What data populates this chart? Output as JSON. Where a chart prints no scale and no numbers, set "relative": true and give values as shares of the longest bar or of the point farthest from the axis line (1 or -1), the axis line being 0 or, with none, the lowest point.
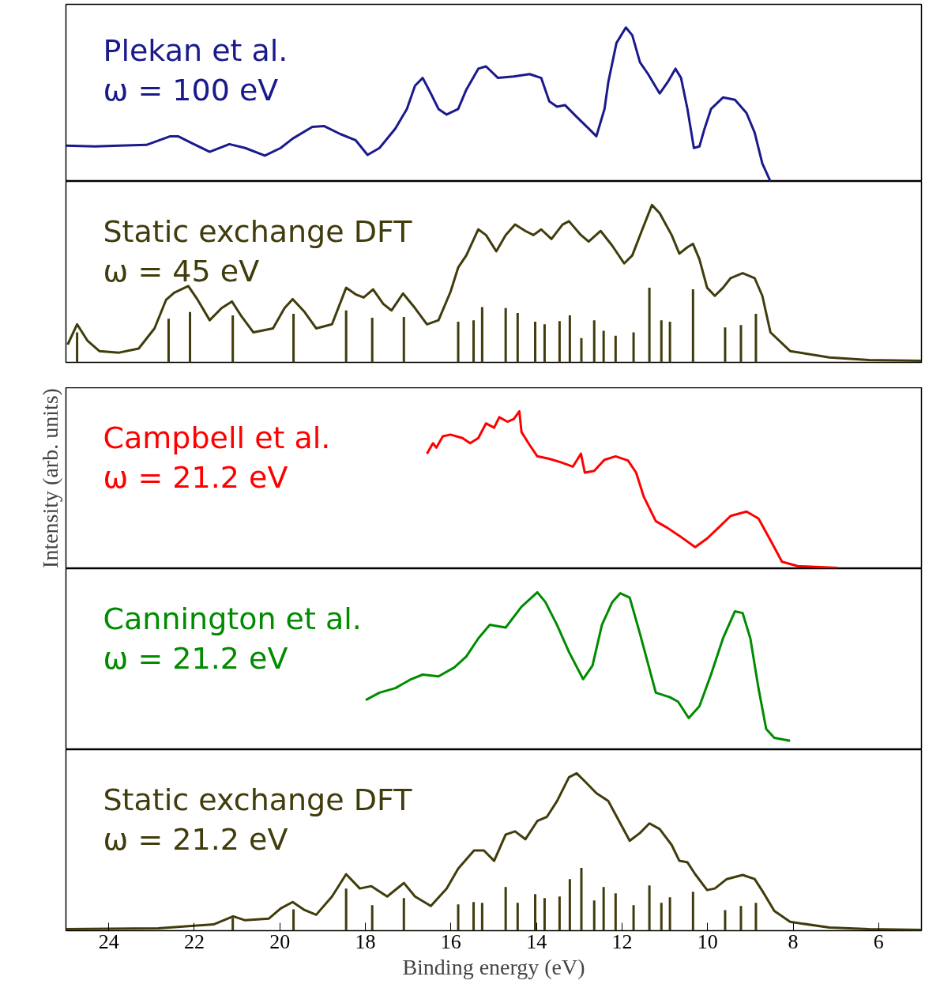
{
  "chart_data": [
    {
      "type": "line",
      "relative": true,
      "xlim": [
        25,
        5
      ],
      "tick_labels": false,
      "grid": false,
      "annotations": [
        "Plekan et al.",
        "ω = 100 eV"
      ],
      "series": [
        {
          "color": "#1a1a8c",
          "x": [
            25.0,
            24.32,
            23.76,
            23.12,
            22.56,
            22.38,
            22.01,
            21.64,
            21.18,
            20.81,
            20.35,
            19.98,
            19.7,
            19.24,
            18.96,
            18.59,
            18.23,
            17.95,
            17.67,
            17.3,
            17.03,
            16.84,
            16.66,
            16.47,
            16.29,
            16.1,
            15.83,
            15.64,
            15.36,
            15.18,
            14.9,
            14.53,
            14.16,
            13.89,
            13.7,
            13.52,
            13.33,
            13.06,
            12.78,
            12.6,
            12.41,
            12.32,
            12.13,
            11.91,
            11.76,
            11.58,
            11.39,
            11.12,
            10.93,
            10.75,
            10.62,
            10.47,
            10.32,
            10.19,
            10.07,
            9.92,
            9.64,
            9.36,
            9.09,
            8.9,
            8.72,
            8.53
          ],
          "values": [
            0.232,
            0.227,
            0.232,
            0.237,
            0.293,
            0.293,
            0.242,
            0.192,
            0.242,
            0.217,
            0.167,
            0.217,
            0.278,
            0.354,
            0.359,
            0.308,
            0.268,
            0.172,
            0.217,
            0.343,
            0.47,
            0.621,
            0.672,
            0.571,
            0.47,
            0.434,
            0.47,
            0.596,
            0.732,
            0.747,
            0.672,
            0.682,
            0.697,
            0.672,
            0.52,
            0.485,
            0.495,
            0.419,
            0.343,
            0.293,
            0.47,
            0.646,
            0.899,
            1.0,
            0.949,
            0.773,
            0.697,
            0.571,
            0.646,
            0.732,
            0.672,
            0.47,
            0.217,
            0.227,
            0.343,
            0.47,
            0.545,
            0.53,
            0.444,
            0.318,
            0.116,
            0
          ]
        }
      ]
    },
    {
      "type": "line",
      "relative": true,
      "xlim": [
        25,
        5
      ],
      "tick_labels": false,
      "grid": false,
      "annotations": [
        "Static exchange DFT",
        "ω = 45 eV"
      ],
      "series": [
        {
          "color": "#403c0c",
          "x": [
            24.96,
            24.74,
            24.5,
            24.22,
            23.76,
            23.3,
            22.93,
            22.66,
            22.47,
            22.14,
            21.92,
            21.64,
            21.36,
            21.12,
            20.9,
            20.62,
            20.16,
            19.89,
            19.7,
            19.42,
            19.15,
            18.78,
            18.45,
            18.23,
            18.04,
            17.82,
            17.58,
            17.39,
            17.12,
            16.84,
            16.56,
            16.29,
            16.01,
            15.83,
            15.64,
            15.36,
            15.18,
            14.94,
            14.72,
            14.5,
            14.26,
            14.07,
            13.89,
            13.65,
            13.39,
            13.24,
            12.96,
            12.78,
            12.5,
            12.23,
            11.95,
            11.76,
            11.54,
            11.3,
            11.12,
            10.84,
            10.66,
            10.47,
            10.34,
            10.19,
            10.01,
            9.83,
            9.64,
            9.46,
            9.18,
            8.9,
            8.72,
            8.53,
            8.07,
            7.15,
            6.23,
            5.0
          ],
          "values": [
            0.113,
            0.242,
            0.139,
            0.072,
            0.062,
            0.088,
            0.216,
            0.397,
            0.443,
            0.485,
            0.397,
            0.268,
            0.345,
            0.387,
            0.294,
            0.191,
            0.216,
            0.345,
            0.402,
            0.32,
            0.216,
            0.242,
            0.474,
            0.433,
            0.412,
            0.464,
            0.371,
            0.33,
            0.438,
            0.345,
            0.242,
            0.268,
            0.448,
            0.603,
            0.68,
            0.845,
            0.809,
            0.706,
            0.809,
            0.876,
            0.835,
            0.809,
            0.845,
            0.784,
            0.876,
            0.897,
            0.809,
            0.768,
            0.835,
            0.742,
            0.629,
            0.68,
            0.835,
            1.0,
            0.948,
            0.809,
            0.691,
            0.732,
            0.753,
            0.655,
            0.474,
            0.423,
            0.474,
            0.536,
            0.567,
            0.536,
            0.423,
            0.191,
            0.072,
            0.031,
            0.015,
            0.01
          ]
        },
        {
          "type": "bar",
          "color": "#403c0c",
          "x": [
            24.74,
            22.6,
            22.1,
            21.1,
            19.68,
            18.45,
            17.84,
            17.1,
            15.83,
            15.47,
            15.27,
            14.72,
            14.44,
            14.03,
            13.81,
            13.46,
            13.22,
            12.95,
            12.65,
            12.43,
            12.15,
            11.73,
            11.36,
            11.08,
            10.88,
            10.34,
            9.59,
            9.22,
            8.87
          ],
          "values": [
            0.191,
            0.278,
            0.32,
            0.299,
            0.309,
            0.33,
            0.284,
            0.289,
            0.258,
            0.268,
            0.351,
            0.345,
            0.314,
            0.258,
            0.242,
            0.263,
            0.299,
            0.155,
            0.268,
            0.201,
            0.17,
            0.191,
            0.474,
            0.268,
            0.258,
            0.464,
            0.222,
            0.237,
            0.309
          ]
        }
      ]
    },
    {
      "type": "line",
      "relative": true,
      "xlim": [
        25,
        5
      ],
      "tick_labels": false,
      "grid": false,
      "ylabel": "Intensity (arb. units)",
      "annotations": [
        "Campbell et al.",
        "ω = 21.2 eV"
      ],
      "series": [
        {
          "color": "#ff0000",
          "x": [
            16.56,
            16.42,
            16.34,
            16.19,
            16.01,
            15.73,
            15.55,
            15.36,
            15.18,
            14.99,
            14.87,
            14.68,
            14.53,
            14.4,
            14.35,
            14.16,
            13.98,
            13.7,
            13.43,
            13.15,
            12.96,
            12.87,
            12.65,
            12.41,
            12.15,
            11.86,
            11.67,
            11.49,
            11.21,
            10.93,
            10.66,
            10.29,
            10.01,
            9.73,
            9.46,
            9.09,
            8.81,
            8.53,
            8.26,
            7.89,
            6.96
          ],
          "values": [
            0.731,
            0.797,
            0.769,
            0.841,
            0.852,
            0.83,
            0.797,
            0.83,
            0.923,
            0.896,
            0.962,
            0.934,
            0.951,
            1.0,
            0.868,
            0.786,
            0.714,
            0.698,
            0.676,
            0.648,
            0.731,
            0.61,
            0.621,
            0.692,
            0.714,
            0.687,
            0.61,
            0.456,
            0.302,
            0.258,
            0.209,
            0.137,
            0.192,
            0.264,
            0.335,
            0.363,
            0.319,
            0.181,
            0.044,
            0.016,
            0.005
          ]
        }
      ]
    },
    {
      "type": "line",
      "relative": true,
      "xlim": [
        25,
        5
      ],
      "tick_labels": false,
      "grid": false,
      "annotations": [
        "Cannington et al.",
        "ω = 21.2 eV"
      ],
      "series": [
        {
          "color": "#008b00",
          "x": [
            17.99,
            17.67,
            17.3,
            16.93,
            16.66,
            16.29,
            15.92,
            15.64,
            15.36,
            15.09,
            14.72,
            14.35,
            13.98,
            13.79,
            13.52,
            13.24,
            12.91,
            12.69,
            12.47,
            12.23,
            12.04,
            11.82,
            11.58,
            11.21,
            10.88,
            10.69,
            10.44,
            10.19,
            9.92,
            9.64,
            9.36,
            9.18,
            9.0,
            8.81,
            8.63,
            8.44,
            8.07
          ],
          "values": [
            0.316,
            0.362,
            0.391,
            0.448,
            0.477,
            0.466,
            0.523,
            0.592,
            0.707,
            0.793,
            0.776,
            0.908,
            1.0,
            0.937,
            0.793,
            0.621,
            0.448,
            0.534,
            0.793,
            0.937,
            0.994,
            0.966,
            0.736,
            0.362,
            0.333,
            0.305,
            0.201,
            0.276,
            0.477,
            0.707,
            0.879,
            0.868,
            0.707,
            0.391,
            0.132,
            0.075,
            0.057
          ]
        }
      ]
    },
    {
      "type": "line",
      "relative": true,
      "xlim": [
        25,
        5
      ],
      "xticks": [
        24,
        22,
        20,
        18,
        16,
        14,
        12,
        10,
        8,
        6
      ],
      "tick_labels": "x",
      "grid": false,
      "xlabel": "Binding energy (eV)",
      "annotations": [
        "Static exchange DFT",
        "ω = 21.2 eV"
      ],
      "series": [
        {
          "color": "#403c0c",
          "x": [
            25.0,
            22.84,
            21.55,
            21.09,
            20.81,
            20.26,
            19.98,
            19.7,
            19.42,
            19.15,
            18.78,
            18.45,
            18.13,
            17.86,
            17.49,
            17.1,
            16.84,
            16.47,
            16.1,
            15.83,
            15.46,
            15.23,
            14.99,
            14.72,
            14.5,
            14.26,
            13.98,
            13.76,
            13.52,
            13.24,
            13.06,
            12.87,
            12.6,
            12.32,
            12.04,
            11.82,
            11.58,
            11.36,
            11.12,
            10.84,
            10.66,
            10.47,
            10.29,
            10.01,
            9.83,
            9.55,
            9.18,
            8.9,
            8.72,
            8.44,
            8.07,
            7.15,
            6.23,
            5.0
          ],
          "values": [
            0.01,
            0.015,
            0.04,
            0.091,
            0.066,
            0.076,
            0.141,
            0.182,
            0.131,
            0.101,
            0.217,
            0.359,
            0.268,
            0.283,
            0.217,
            0.303,
            0.217,
            0.157,
            0.268,
            0.394,
            0.51,
            0.51,
            0.444,
            0.611,
            0.631,
            0.581,
            0.697,
            0.722,
            0.823,
            0.975,
            1.0,
            0.949,
            0.874,
            0.823,
            0.682,
            0.571,
            0.621,
            0.682,
            0.646,
            0.545,
            0.444,
            0.434,
            0.359,
            0.258,
            0.268,
            0.328,
            0.354,
            0.328,
            0.253,
            0.126,
            0.056,
            0.02,
            0.01,
            0.005
          ]
        },
        {
          "type": "bar",
          "color": "#403c0c",
          "x": [
            21.1,
            19.68,
            18.45,
            17.84,
            17.1,
            15.83,
            15.47,
            15.27,
            14.72,
            14.44,
            14.03,
            13.81,
            13.46,
            13.22,
            12.95,
            12.65,
            12.43,
            12.15,
            11.73,
            11.36,
            11.08,
            10.88,
            10.34,
            9.59,
            9.22,
            8.87
          ],
          "values": [
            0.081,
            0.136,
            0.268,
            0.162,
            0.207,
            0.167,
            0.182,
            0.177,
            0.278,
            0.177,
            0.232,
            0.207,
            0.217,
            0.328,
            0.399,
            0.192,
            0.278,
            0.237,
            0.162,
            0.288,
            0.177,
            0.212,
            0.247,
            0.131,
            0.157,
            0.177
          ]
        }
      ]
    }
  ]
}
